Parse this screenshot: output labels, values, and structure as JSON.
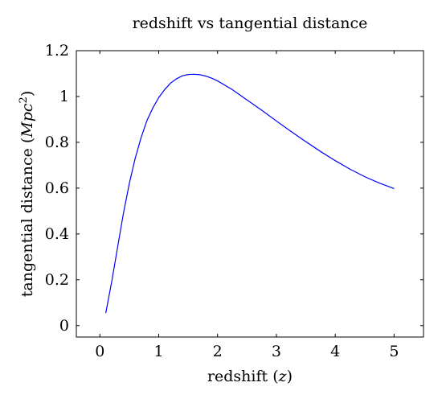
{
  "chart_data": {
    "type": "line",
    "title": "redshift vs tangential distance",
    "xlabel": "redshift (z)",
    "ylabel": "tangential distance (Mpc²)",
    "xlim": [
      -0.4,
      5.5
    ],
    "ylim": [
      -0.05,
      1.2
    ],
    "xticks": [
      "0",
      "1",
      "2",
      "3",
      "4",
      "5"
    ],
    "yticks": [
      "0",
      "0.2",
      "0.4",
      "0.6",
      "0.8",
      "1",
      "1.2"
    ],
    "grid": false,
    "line_color": "#0000ff",
    "series": [
      {
        "x": [
          0.1,
          0.2,
          0.3,
          0.4,
          0.5,
          0.6,
          0.7,
          0.8,
          0.9,
          1.0,
          1.1,
          1.2,
          1.3,
          1.4,
          1.5,
          1.6,
          1.7,
          1.8,
          1.9,
          2.0,
          2.25,
          2.5,
          2.75,
          3.0,
          3.25,
          3.5,
          3.75,
          4.0,
          4.25,
          4.5,
          4.75,
          5.0
        ],
        "y": [
          0.055,
          0.19,
          0.34,
          0.49,
          0.62,
          0.73,
          0.82,
          0.895,
          0.95,
          0.995,
          1.03,
          1.058,
          1.077,
          1.09,
          1.096,
          1.097,
          1.095,
          1.089,
          1.08,
          1.068,
          1.03,
          0.985,
          0.94,
          0.893,
          0.847,
          0.803,
          0.76,
          0.72,
          0.683,
          0.65,
          0.622,
          0.598
        ]
      }
    ]
  }
}
